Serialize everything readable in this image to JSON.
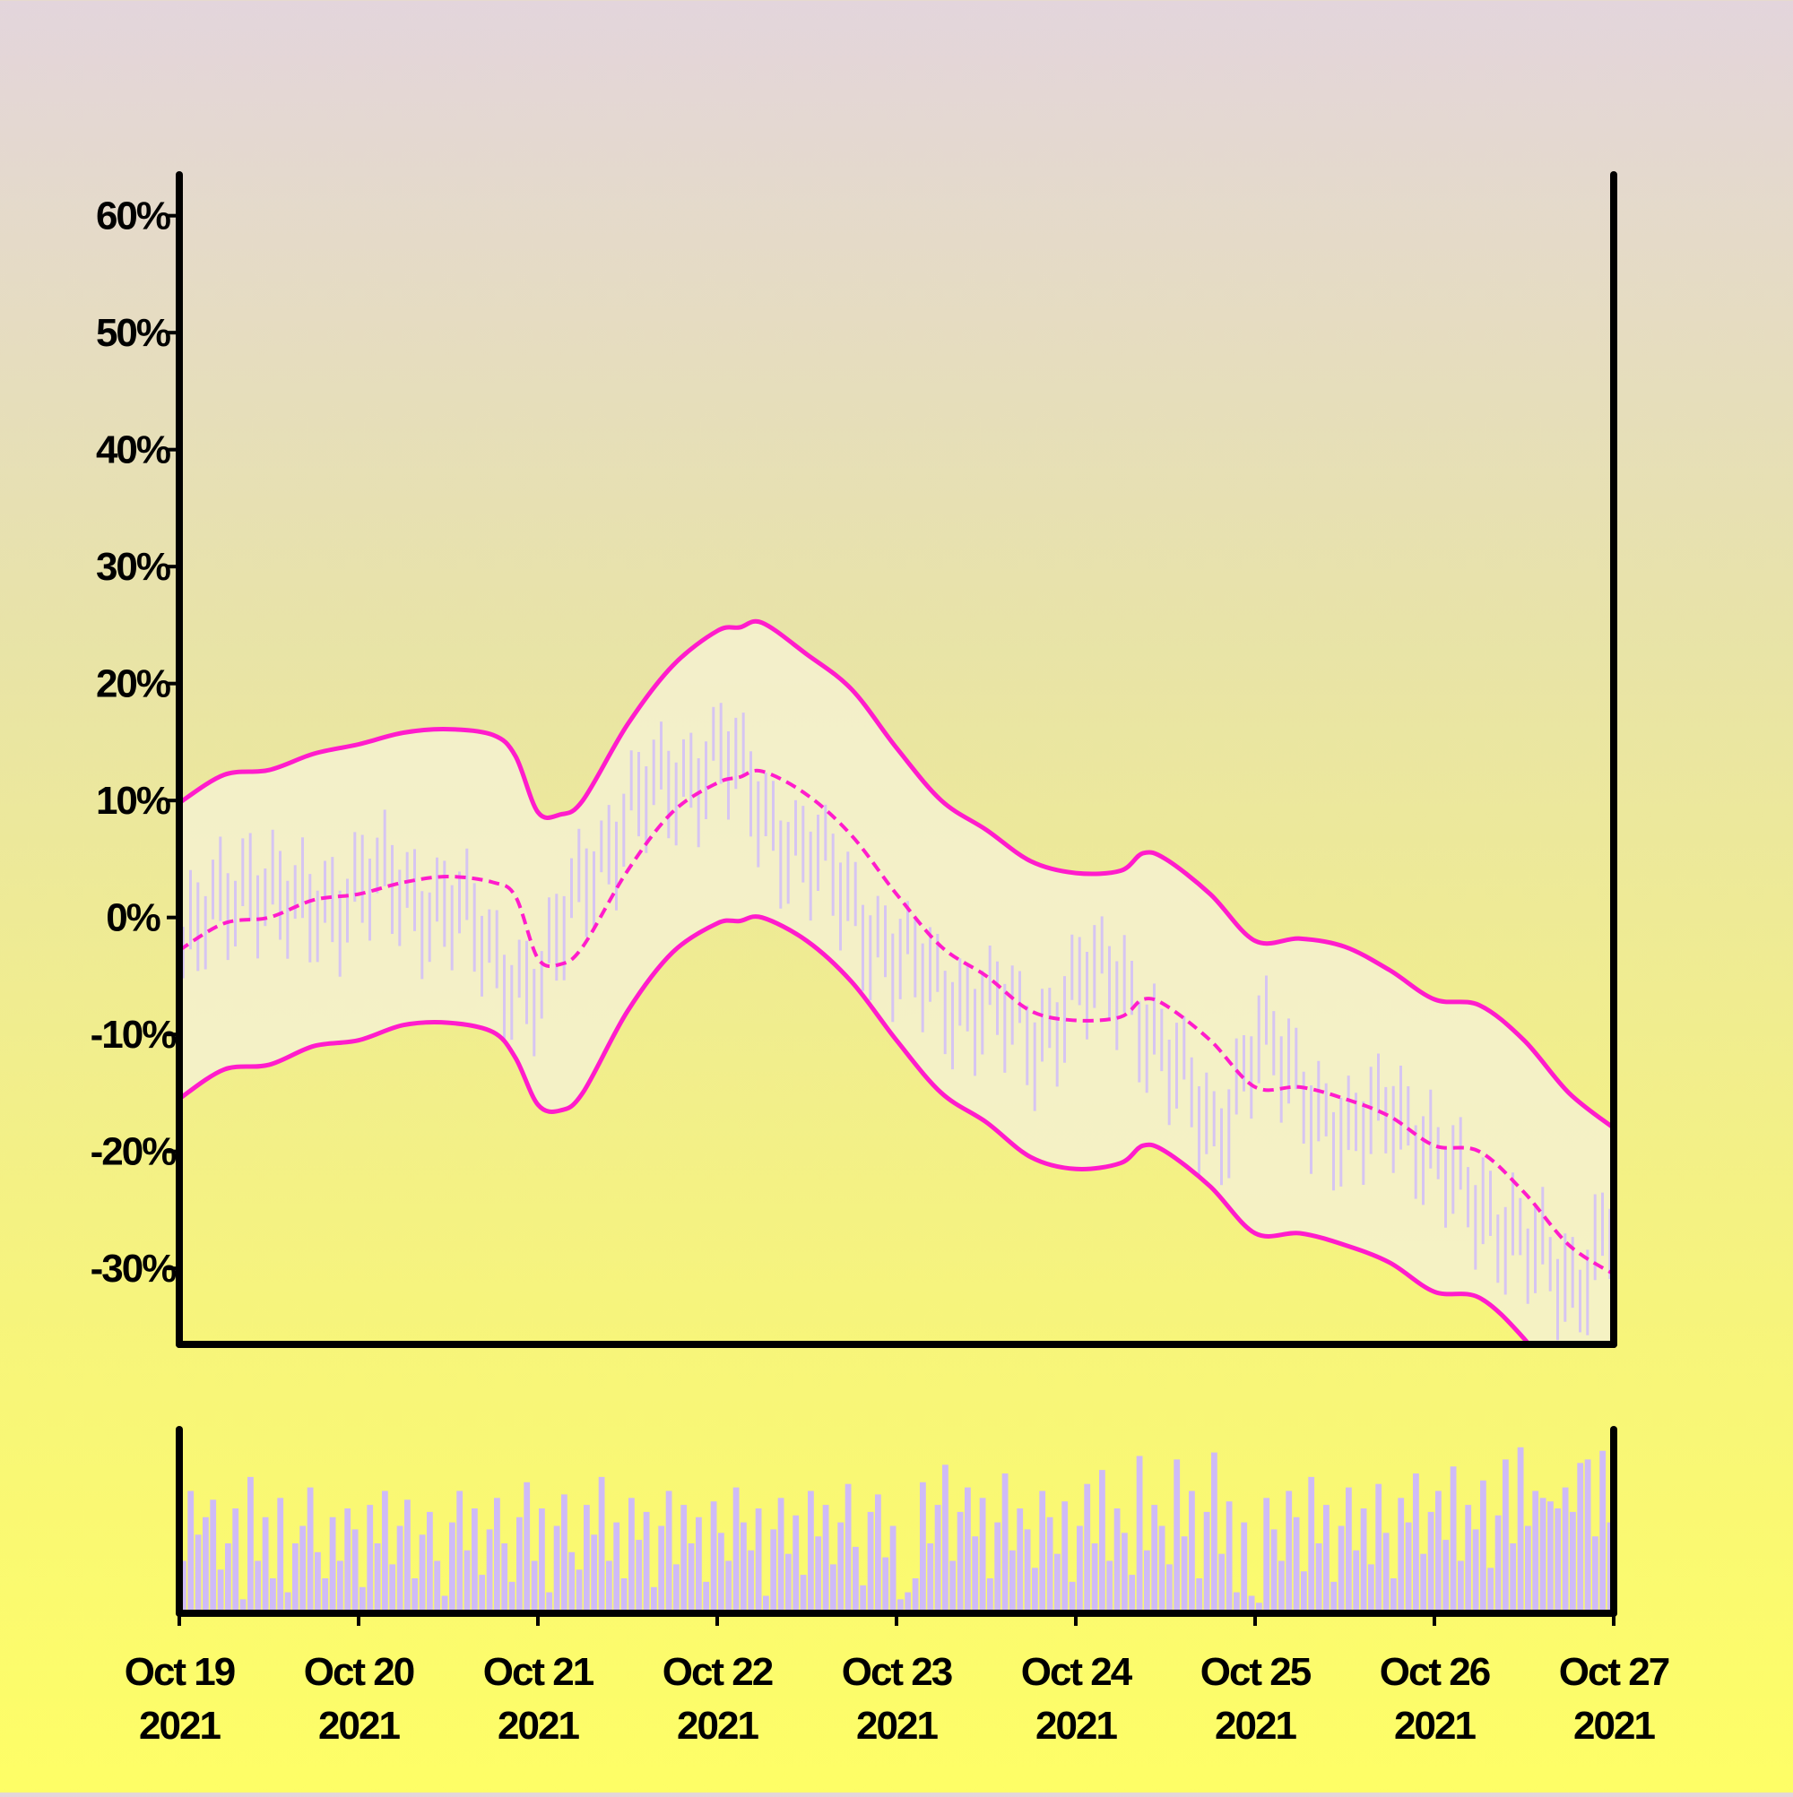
{
  "chart_data": {
    "type": "line",
    "title": "",
    "xlabel": "",
    "ylabel": "",
    "x_ticks": [
      {
        "date": "2021-10-19",
        "line1": "Oct 19",
        "line2": "2021"
      },
      {
        "date": "2021-10-20",
        "line1": "Oct 20",
        "line2": "2021"
      },
      {
        "date": "2021-10-21",
        "line1": "Oct 21",
        "line2": "2021"
      },
      {
        "date": "2021-10-22",
        "line1": "Oct 22",
        "line2": "2021"
      },
      {
        "date": "2021-10-23",
        "line1": "Oct 23",
        "line2": "2021"
      },
      {
        "date": "2021-10-24",
        "line1": "Oct 24",
        "line2": "2021"
      },
      {
        "date": "2021-10-25",
        "line1": "Oct 25",
        "line2": "2021"
      },
      {
        "date": "2021-10-26",
        "line1": "Oct 26",
        "line2": "2021"
      },
      {
        "date": "2021-10-27",
        "line1": "Oct 27",
        "line2": "2021"
      }
    ],
    "y_ticks": [
      {
        "value": -30,
        "label": "-30%"
      },
      {
        "value": -20,
        "label": "-20%"
      },
      {
        "value": -10,
        "label": "-10%"
      },
      {
        "value": 0,
        "label": "0%"
      },
      {
        "value": 10,
        "label": "10%"
      },
      {
        "value": 20,
        "label": "20%"
      },
      {
        "value": 30,
        "label": "30%"
      },
      {
        "value": 40,
        "label": "40%"
      },
      {
        "value": 50,
        "label": "50%"
      },
      {
        "value": 60,
        "label": "60%"
      }
    ],
    "xlim": [
      "2021-10-19T00:00",
      "2021-10-27T00:00"
    ],
    "ylim": [
      -36.5,
      63.5
    ],
    "grid": false,
    "colors": {
      "band_line": "#ff1ccc",
      "band_fill": "#f5f1d0",
      "price_bars": "#d6c5f2",
      "volume_bars": "#cfbbf7",
      "axis": "#000000"
    },
    "series": [
      {
        "role": "upper_band",
        "style": "solid",
        "points": [
          [
            "2021-10-19T00:00",
            9.8
          ],
          [
            "2021-10-19T06:00",
            12.2
          ],
          [
            "2021-10-19T12:00",
            12.6
          ],
          [
            "2021-10-19T18:00",
            14.0
          ],
          [
            "2021-10-20T00:00",
            14.8
          ],
          [
            "2021-10-20T06:00",
            15.8
          ],
          [
            "2021-10-20T12:00",
            16.1
          ],
          [
            "2021-10-20T18:00",
            15.6
          ],
          [
            "2021-10-20T21:00",
            13.8
          ],
          [
            "2021-10-21T00:00",
            9.0
          ],
          [
            "2021-10-21T03:00",
            8.8
          ],
          [
            "2021-10-21T06:00",
            10.0
          ],
          [
            "2021-10-21T12:00",
            16.5
          ],
          [
            "2021-10-21T18:00",
            21.5
          ],
          [
            "2021-10-22T00:00",
            24.5
          ],
          [
            "2021-10-22T03:00",
            24.8
          ],
          [
            "2021-10-22T06:00",
            25.2
          ],
          [
            "2021-10-22T12:00",
            22.5
          ],
          [
            "2021-10-22T18:00",
            19.5
          ],
          [
            "2021-10-23T00:00",
            14.5
          ],
          [
            "2021-10-23T06:00",
            10.0
          ],
          [
            "2021-10-23T12:00",
            7.5
          ],
          [
            "2021-10-23T18:00",
            4.8
          ],
          [
            "2021-10-24T00:00",
            3.8
          ],
          [
            "2021-10-24T06:00",
            4.0
          ],
          [
            "2021-10-24T09:00",
            5.5
          ],
          [
            "2021-10-24T12:00",
            5.0
          ],
          [
            "2021-10-24T18:00",
            2.0
          ],
          [
            "2021-10-25T00:00",
            -2.0
          ],
          [
            "2021-10-25T06:00",
            -1.8
          ],
          [
            "2021-10-25T12:00",
            -2.5
          ],
          [
            "2021-10-25T18:00",
            -4.5
          ],
          [
            "2021-10-26T00:00",
            -7.0
          ],
          [
            "2021-10-26T06:00",
            -7.5
          ],
          [
            "2021-10-26T12:00",
            -10.5
          ],
          [
            "2021-10-26T18:00",
            -15.0
          ],
          [
            "2021-10-27T00:00",
            -18.0
          ]
        ]
      },
      {
        "role": "middle_band",
        "style": "dashed",
        "points": [
          [
            "2021-10-19T00:00",
            -2.8
          ],
          [
            "2021-10-19T06:00",
            -0.5
          ],
          [
            "2021-10-19T12:00",
            0.0
          ],
          [
            "2021-10-19T18:00",
            1.5
          ],
          [
            "2021-10-20T00:00",
            2.0
          ],
          [
            "2021-10-20T06:00",
            3.0
          ],
          [
            "2021-10-20T12:00",
            3.5
          ],
          [
            "2021-10-20T18:00",
            3.0
          ],
          [
            "2021-10-20T21:00",
            1.8
          ],
          [
            "2021-10-21T00:00",
            -3.5
          ],
          [
            "2021-10-21T03:00",
            -4.0
          ],
          [
            "2021-10-21T06:00",
            -2.5
          ],
          [
            "2021-10-21T12:00",
            4.0
          ],
          [
            "2021-10-21T18:00",
            9.0
          ],
          [
            "2021-10-22T00:00",
            11.5
          ],
          [
            "2021-10-22T03:00",
            12.0
          ],
          [
            "2021-10-22T06:00",
            12.5
          ],
          [
            "2021-10-22T12:00",
            10.5
          ],
          [
            "2021-10-22T18:00",
            7.0
          ],
          [
            "2021-10-23T00:00",
            2.0
          ],
          [
            "2021-10-23T06:00",
            -2.5
          ],
          [
            "2021-10-23T12:00",
            -5.0
          ],
          [
            "2021-10-23T18:00",
            -8.0
          ],
          [
            "2021-10-24T00:00",
            -8.8
          ],
          [
            "2021-10-24T06:00",
            -8.5
          ],
          [
            "2021-10-24T09:00",
            -7.0
          ],
          [
            "2021-10-24T12:00",
            -7.5
          ],
          [
            "2021-10-24T18:00",
            -10.5
          ],
          [
            "2021-10-25T00:00",
            -14.5
          ],
          [
            "2021-10-25T06:00",
            -14.5
          ],
          [
            "2021-10-25T12:00",
            -15.5
          ],
          [
            "2021-10-25T18:00",
            -17.0
          ],
          [
            "2021-10-26T00:00",
            -19.5
          ],
          [
            "2021-10-26T06:00",
            -20.0
          ],
          [
            "2021-10-26T12:00",
            -23.5
          ],
          [
            "2021-10-26T18:00",
            -28.0
          ],
          [
            "2021-10-27T00:00",
            -30.5
          ]
        ]
      },
      {
        "role": "lower_band",
        "style": "solid",
        "points": [
          [
            "2021-10-19T00:00",
            -15.5
          ],
          [
            "2021-10-19T06:00",
            -13.0
          ],
          [
            "2021-10-19T12:00",
            -12.6
          ],
          [
            "2021-10-19T18:00",
            -11.0
          ],
          [
            "2021-10-20T00:00",
            -10.5
          ],
          [
            "2021-10-20T06:00",
            -9.2
          ],
          [
            "2021-10-20T12:00",
            -9.0
          ],
          [
            "2021-10-20T18:00",
            -9.8
          ],
          [
            "2021-10-20T21:00",
            -12.0
          ],
          [
            "2021-10-21T00:00",
            -16.0
          ],
          [
            "2021-10-21T03:00",
            -16.5
          ],
          [
            "2021-10-21T06:00",
            -15.0
          ],
          [
            "2021-10-21T12:00",
            -8.0
          ],
          [
            "2021-10-21T18:00",
            -3.0
          ],
          [
            "2021-10-22T00:00",
            -0.5
          ],
          [
            "2021-10-22T03:00",
            -0.3
          ],
          [
            "2021-10-22T06:00",
            0.0
          ],
          [
            "2021-10-22T12:00",
            -2.0
          ],
          [
            "2021-10-22T18:00",
            -5.5
          ],
          [
            "2021-10-23T00:00",
            -10.5
          ],
          [
            "2021-10-23T06:00",
            -15.0
          ],
          [
            "2021-10-23T12:00",
            -17.5
          ],
          [
            "2021-10-23T18:00",
            -20.5
          ],
          [
            "2021-10-24T00:00",
            -21.5
          ],
          [
            "2021-10-24T06:00",
            -21.0
          ],
          [
            "2021-10-24T09:00",
            -19.5
          ],
          [
            "2021-10-24T12:00",
            -20.0
          ],
          [
            "2021-10-24T18:00",
            -23.0
          ],
          [
            "2021-10-25T00:00",
            -27.0
          ],
          [
            "2021-10-25T06:00",
            -27.0
          ],
          [
            "2021-10-25T12:00",
            -28.0
          ],
          [
            "2021-10-25T18:00",
            -29.5
          ],
          [
            "2021-10-26T00:00",
            -32.0
          ],
          [
            "2021-10-26T06:00",
            -32.5
          ],
          [
            "2021-10-26T12:00",
            -36.0
          ],
          [
            "2021-10-26T18:00",
            -41.0
          ],
          [
            "2021-10-27T00:00",
            -43.0
          ]
        ]
      }
    ],
    "price_bars": {
      "interval_hours": 1,
      "start": "2021-10-19T00:00",
      "count": 192,
      "anchors": [
        [
          "2021-10-19T00:00",
          -3.0
        ],
        [
          "2021-10-19T09:00",
          4.0
        ],
        [
          "2021-10-19T15:00",
          0.0
        ],
        [
          "2021-10-20T00:00",
          3.0
        ],
        [
          "2021-10-20T06:00",
          2.0
        ],
        [
          "2021-10-20T12:00",
          1.0
        ],
        [
          "2021-10-20T18:00",
          -4.0
        ],
        [
          "2021-10-21T00:00",
          -6.0
        ],
        [
          "2021-10-21T06:00",
          4.0
        ],
        [
          "2021-10-21T12:00",
          9.0
        ],
        [
          "2021-10-21T18:00",
          12.0
        ],
        [
          "2021-10-22T00:00",
          14.0
        ],
        [
          "2021-10-22T06:00",
          9.0
        ],
        [
          "2021-10-22T12:00",
          5.0
        ],
        [
          "2021-10-22T18:00",
          1.0
        ],
        [
          "2021-10-23T00:00",
          -4.0
        ],
        [
          "2021-10-23T06:00",
          -6.0
        ],
        [
          "2021-10-23T12:00",
          -8.0
        ],
        [
          "2021-10-23T18:00",
          -10.0
        ],
        [
          "2021-10-24T00:00",
          -6.0
        ],
        [
          "2021-10-24T06:00",
          -5.0
        ],
        [
          "2021-10-24T12:00",
          -13.0
        ],
        [
          "2021-10-24T18:00",
          -18.0
        ],
        [
          "2021-10-25T00:00",
          -11.0
        ],
        [
          "2021-10-25T06:00",
          -14.0
        ],
        [
          "2021-10-25T12:00",
          -20.0
        ],
        [
          "2021-10-25T18:00",
          -15.0
        ],
        [
          "2021-10-26T00:00",
          -22.0
        ],
        [
          "2021-10-26T06:00",
          -24.0
        ],
        [
          "2021-10-26T12:00",
          -29.0
        ],
        [
          "2021-10-26T18:00",
          -31.0
        ],
        [
          "2021-10-27T00:00",
          -26.0
        ]
      ]
    },
    "volume_bars": {
      "interval_hours": 1,
      "start": "2021-10-19T00:00",
      "count": 192,
      "relative_levels": [
        0.3,
        0.7,
        0.45,
        0.55,
        0.65,
        0.25,
        0.4,
        0.6,
        0.08,
        0.78,
        0.3,
        0.55,
        0.2,
        0.66,
        0.12,
        0.4,
        0.5,
        0.72,
        0.35,
        0.2,
        0.55,
        0.3,
        0.6,
        0.48,
        0.15,
        0.62,
        0.4,
        0.7,
        0.28,
        0.5,
        0.65,
        0.2,
        0.45,
        0.58,
        0.3,
        0.1,
        0.52,
        0.7,
        0.36,
        0.6,
        0.22,
        0.48,
        0.66,
        0.4,
        0.18,
        0.55,
        0.75,
        0.3,
        0.6,
        0.12,
        0.5,
        0.68,
        0.35,
        0.25,
        0.62,
        0.45,
        0.78,
        0.3,
        0.52,
        0.2,
        0.66,
        0.42,
        0.58,
        0.15,
        0.5,
        0.7,
        0.28,
        0.62,
        0.4,
        0.55,
        0.18,
        0.64,
        0.46,
        0.3,
        0.72,
        0.52,
        0.36,
        0.6,
        0.1,
        0.48,
        0.66,
        0.34,
        0.56,
        0.22,
        0.7,
        0.44,
        0.62,
        0.28,
        0.52,
        0.74,
        0.38,
        0.16,
        0.58,
        0.68,
        0.32,
        0.5,
        0.08,
        0.12,
        0.2,
        0.75,
        0.4,
        0.62,
        0.85,
        0.3,
        0.58,
        0.72,
        0.44,
        0.66,
        0.2,
        0.52,
        0.8,
        0.36,
        0.6,
        0.48,
        0.26,
        0.7,
        0.55,
        0.34,
        0.64,
        0.18,
        0.5,
        0.74,
        0.4,
        0.82,
        0.3,
        0.6,
        0.46,
        0.22,
        0.9,
        0.36,
        0.62,
        0.5,
        0.28,
        0.88,
        0.44,
        0.7,
        0.2,
        0.58,
        0.92,
        0.34,
        0.64,
        0.12,
        0.52,
        0.1,
        0.06,
        0.66,
        0.48,
        0.3,
        0.7,
        0.55,
        0.24,
        0.78,
        0.4,
        0.62,
        0.18,
        0.5,
        0.72,
        0.36,
        0.6,
        0.28,
        0.74,
        0.46,
        0.2,
        0.66,
        0.52,
        0.8,
        0.34,
        0.58,
        0.7,
        0.42,
        0.84,
        0.3,
        0.62,
        0.48,
        0.76,
        0.26,
        0.56,
        0.88,
        0.4,
        0.95,
        0.5,
        0.7,
        0.66,
        0.64,
        0.6,
        0.72,
        0.58,
        0.86,
        0.88,
        0.44,
        0.93,
        0.52
      ]
    }
  }
}
